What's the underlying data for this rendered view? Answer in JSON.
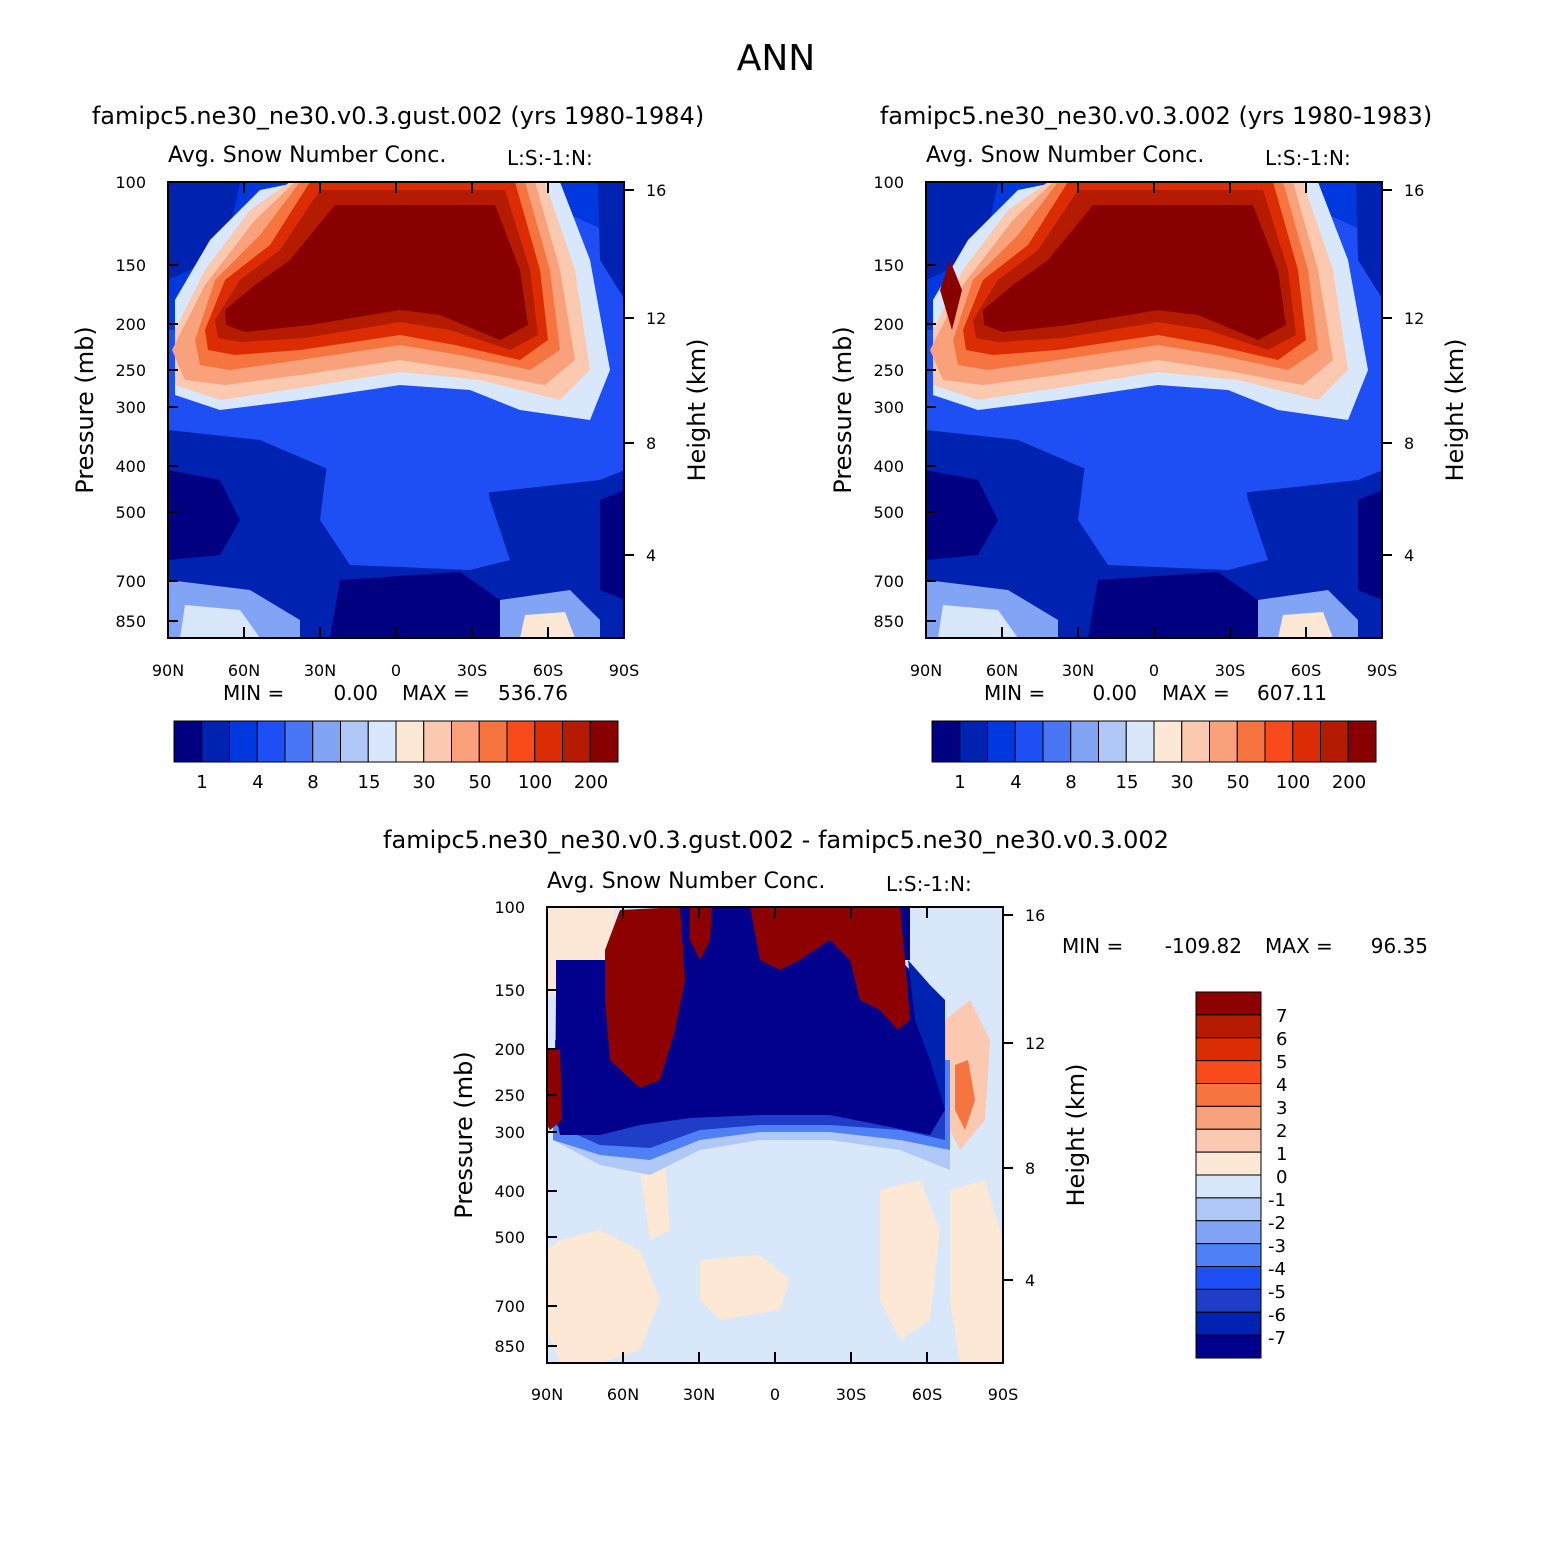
{
  "figure": {
    "title": "ANN"
  },
  "colors": {
    "abs_palette": [
      "#000080",
      "#0022b0",
      "#0038e0",
      "#1e4ff5",
      "#4876f5",
      "#82a4f5",
      "#b0c8f8",
      "#d8e8fa",
      "#fde8d5",
      "#fbc8b0",
      "#f8a17a",
      "#f57440",
      "#f84a1a",
      "#dc2c04",
      "#b41b00",
      "#880000"
    ],
    "diff_palette": [
      "#00008c",
      "#0022b0",
      "#1e3ec8",
      "#1e4ff5",
      "#5080f5",
      "#82a4f5",
      "#b0c8f8",
      "#d8e8fa",
      "#fde8d5",
      "#fbc8b0",
      "#f8a17a",
      "#f57440",
      "#f84a1a",
      "#dc2c04",
      "#b41b00",
      "#8c0000"
    ]
  },
  "chart_data": [
    {
      "type": "heatmap",
      "run_title": "famipc5.ne30_ne30.v0.3.gust.002 (yrs 1980-1984)",
      "subtitle": "Avg. Snow Number Conc.",
      "units_note": "L:S:-1:N:",
      "xlabel": "",
      "ylabel": "Pressure (mb)",
      "y2label": "Height (km)",
      "x_ticks": [
        "90N",
        "60N",
        "30N",
        "0",
        "30S",
        "60S",
        "90S"
      ],
      "y_ticks": [
        "100",
        "150",
        "200",
        "250",
        "300",
        "400",
        "500",
        "700",
        "850"
      ],
      "y2_ticks": [
        "16",
        "12",
        "8",
        "4"
      ],
      "min_label": "MIN =",
      "min_value": "0.00",
      "max_label": "MAX =",
      "max_value": "536.76",
      "colorbar_labels": [
        "1",
        "4",
        "8",
        "15",
        "30",
        "50",
        "100",
        "200"
      ]
    },
    {
      "type": "heatmap",
      "run_title": "famipc5.ne30_ne30.v0.3.002 (yrs 1980-1983)",
      "subtitle": "Avg. Snow Number Conc.",
      "units_note": "L:S:-1:N:",
      "xlabel": "",
      "ylabel": "Pressure (mb)",
      "y2label": "Height (km)",
      "x_ticks": [
        "90N",
        "60N",
        "30N",
        "0",
        "30S",
        "60S",
        "90S"
      ],
      "y_ticks": [
        "100",
        "150",
        "200",
        "250",
        "300",
        "400",
        "500",
        "700",
        "850"
      ],
      "y2_ticks": [
        "16",
        "12",
        "8",
        "4"
      ],
      "min_label": "MIN =",
      "min_value": "0.00",
      "max_label": "MAX =",
      "max_value": "607.11",
      "colorbar_labels": [
        "1",
        "4",
        "8",
        "15",
        "30",
        "50",
        "100",
        "200"
      ]
    },
    {
      "type": "heatmap",
      "run_title": "famipc5.ne30_ne30.v0.3.gust.002 - famipc5.ne30_ne30.v0.3.002",
      "subtitle": "Avg. Snow Number Conc.",
      "units_note": "L:S:-1:N:",
      "xlabel": "",
      "ylabel": "Pressure (mb)",
      "y2label": "Height (km)",
      "x_ticks": [
        "90N",
        "60N",
        "30N",
        "0",
        "30S",
        "60S",
        "90S"
      ],
      "y_ticks": [
        "100",
        "150",
        "200",
        "250",
        "300",
        "400",
        "500",
        "700",
        "850"
      ],
      "y2_ticks": [
        "16",
        "12",
        "8",
        "4"
      ],
      "min_label": "MIN =",
      "min_value": "-109.82",
      "max_label": "MAX =",
      "max_value": "96.35",
      "colorbar_labels": [
        "7",
        "6",
        "5",
        "4",
        "3",
        "2",
        "1",
        "0",
        "-1",
        "-2",
        "-3",
        "-4",
        "-5",
        "-6",
        "-7"
      ]
    }
  ]
}
